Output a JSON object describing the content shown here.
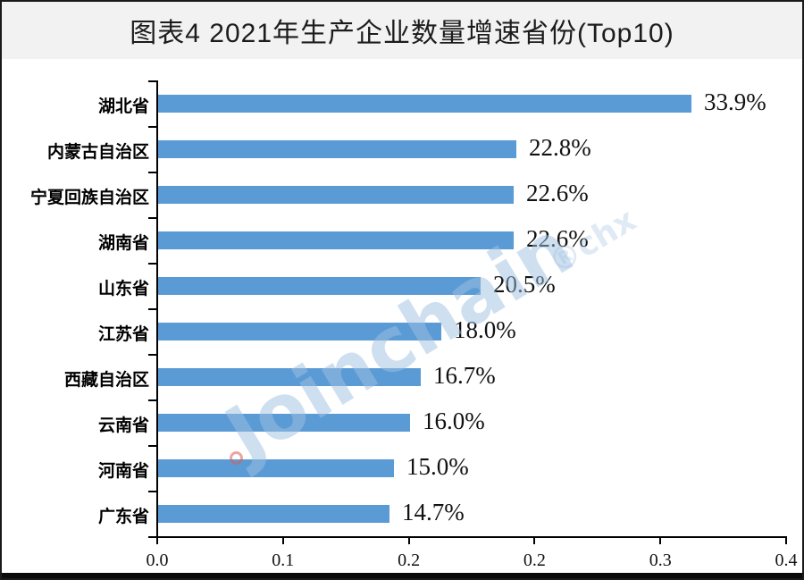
{
  "header": {
    "title": "图表4 2021年生产企业数量增速省份(Top10)",
    "title_color": "#1c1c1c",
    "band_color": "#f2f2f2"
  },
  "watermark": {
    "text": "Joinchain",
    "tail": "®chx",
    "color": "#9fc0e2",
    "accent_color": "#d95d52"
  },
  "chart_data": {
    "type": "bar",
    "orientation": "horizontal",
    "title": "图表4 2021年生产企业数量增速省份(Top10)",
    "categories": [
      "湖北省",
      "内蒙古自治区",
      "宁夏回族自治区",
      "湖南省",
      "山东省",
      "江苏省",
      "西藏自治区",
      "云南省",
      "河南省",
      "广东省"
    ],
    "values": [
      0.339,
      0.228,
      0.226,
      0.226,
      0.205,
      0.18,
      0.167,
      0.16,
      0.15,
      0.147
    ],
    "value_labels": [
      "33.9%",
      "22.8%",
      "22.6%",
      "22.6%",
      "20.5%",
      "18.0%",
      "16.7%",
      "16.0%",
      "15.0%",
      "14.7%"
    ],
    "xlabel": "",
    "ylabel": "",
    "xlim": [
      0,
      0.4
    ],
    "x_tick_labels": [
      "0.0",
      "0.1",
      "0.2",
      "0.2",
      "0.3",
      "0.4"
    ],
    "bar_color": "#5B9BD5",
    "axis_color": "#000000",
    "grid": false,
    "legend": false
  }
}
